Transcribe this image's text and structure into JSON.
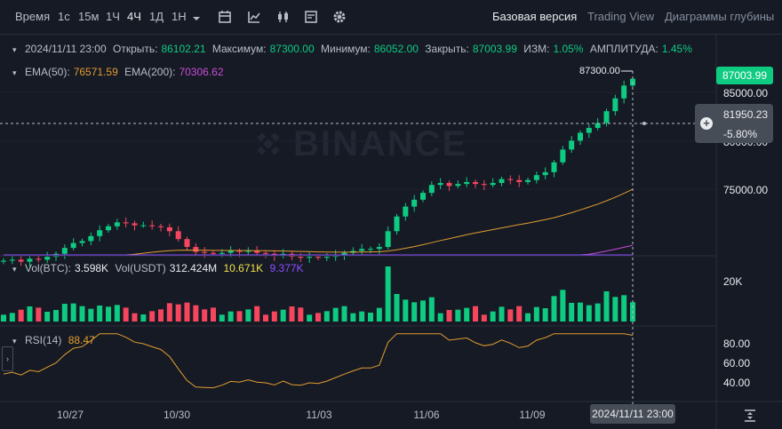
{
  "toolbar": {
    "time_label": "Время",
    "intervals": [
      "1с",
      "15м",
      "1Ч",
      "4Ч",
      "1Д",
      "1Н"
    ],
    "active_interval": "4Ч",
    "views": [
      "Базовая версия",
      "Trading View",
      "Диаграммы глубины"
    ],
    "active_view": "Базовая версия"
  },
  "ohlc": {
    "date": "2024/11/11 23:00",
    "open_label": "Открыть:",
    "open": "86102.21",
    "high_label": "Максимум:",
    "high": "87300.00",
    "low_label": "Минимум:",
    "low": "86052.00",
    "close_label": "Закрыть:",
    "close": "87003.99",
    "change_label": "ИЗМ:",
    "change": "1.05%",
    "amplitude_label": "АМПЛИТУДА:",
    "amplitude": "1.45%"
  },
  "ema": {
    "ema50_label": "EMA(50):",
    "ema50": "76571.59",
    "ema200_label": "EMA(200):",
    "ema200": "70306.62"
  },
  "volume": {
    "btc_label": "Vol(BTC):",
    "btc": "3.598K",
    "usdt_label": "Vol(USDT)",
    "usdt": "312.424M",
    "ma1": "10.671K",
    "ma2": "9.377K",
    "axis": "20K"
  },
  "rsi": {
    "label": "RSI(14)",
    "value": "88.47",
    "axis": [
      "80.00",
      "60.00",
      "40.00"
    ]
  },
  "price_axis": [
    "85000.00",
    "80000.00",
    "75000.00"
  ],
  "last_price": "87003.99",
  "high_marker": "87300.00",
  "crosshair": {
    "price": "81950.23",
    "pct": "-5.80%",
    "time": "2024/11/11 23:00"
  },
  "dates": [
    "10/27",
    "10/30",
    "11/03",
    "11/06",
    "11/09"
  ],
  "watermark": "BINANCE",
  "colors": {
    "up": "#0ecb81",
    "down": "#f6465d",
    "ema50": "#e29d2f",
    "ema200": "#c84dd9",
    "bg": "#161a25"
  },
  "chart_data": {
    "type": "candlestick",
    "x_range": [
      "2024-10-26",
      "2024-11-11"
    ],
    "y_range": [
      69000,
      88500
    ],
    "candle_close_path": [
      68500,
      68600,
      68400,
      68700,
      68600,
      68900,
      69200,
      69800,
      70300,
      70500,
      71000,
      71600,
      72000,
      72400,
      72300,
      72100,
      72100,
      72000,
      71900,
      71500,
      70700,
      69900,
      69400,
      69300,
      69200,
      69300,
      69500,
      69400,
      69500,
      69300,
      69200,
      69000,
      69200,
      68900,
      68800,
      68900,
      68800,
      68900,
      69100,
      69300,
      69500,
      69700,
      69700,
      69900,
      71500,
      73000,
      74000,
      74700,
      75400,
      76200,
      76400,
      76100,
      76300,
      76500,
      76300,
      76200,
      76400,
      76800,
      76700,
      76500,
      76700,
      77200,
      77500,
      78500,
      79800,
      80700,
      81500,
      82000,
      82500,
      83700,
      85000,
      86300,
      87003
    ]
  }
}
